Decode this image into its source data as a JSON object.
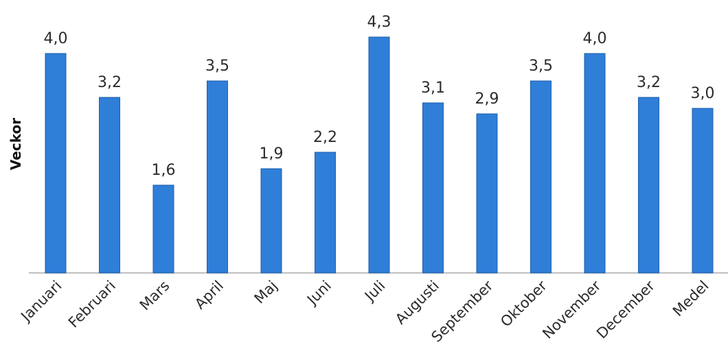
{
  "chart_data": {
    "type": "bar",
    "categories": [
      "Januari",
      "Februari",
      "Mars",
      "April",
      "Maj",
      "Juni",
      "Juli",
      "Augusti",
      "September",
      "Oktober",
      "November",
      "December",
      "Medel"
    ],
    "values": [
      4.0,
      3.2,
      1.6,
      3.5,
      1.9,
      2.2,
      4.3,
      3.1,
      2.9,
      3.5,
      4.0,
      3.2,
      3.0
    ],
    "value_labels": [
      "4,0",
      "3,2",
      "1,6",
      "3,5",
      "1,9",
      "2,2",
      "4,3",
      "3,1",
      "2,9",
      "3,5",
      "4,0",
      "3,2",
      "3,0"
    ],
    "ylabel": "Veckor",
    "xlabel": "",
    "ylim": [
      0,
      4.3
    ],
    "grid": false,
    "legend": "none",
    "colors": {
      "bar": "#2f7ed8",
      "bar_edge": "#1f5fa8",
      "axis": "#bfbfbf"
    }
  }
}
